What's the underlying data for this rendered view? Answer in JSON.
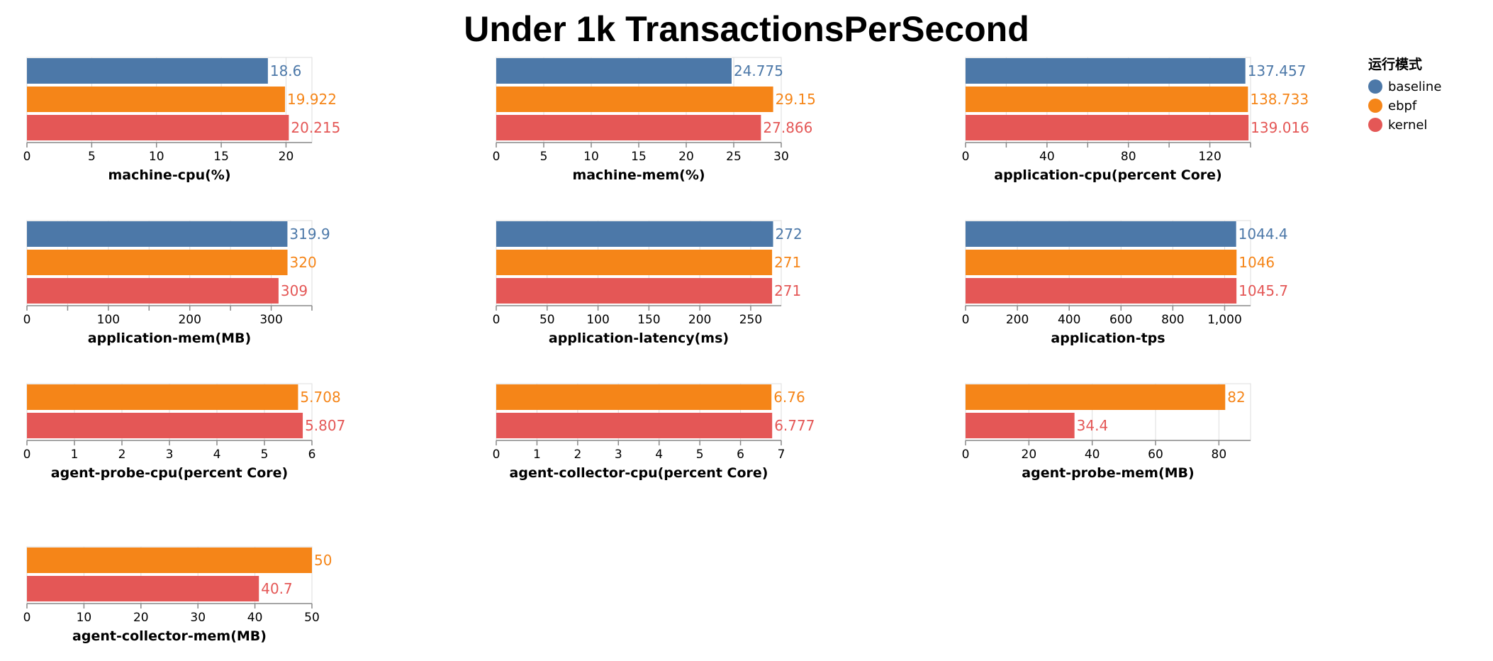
{
  "title": "Under 1k TransactionsPerSecond",
  "colors": {
    "baseline": "#4c78a8",
    "ebpf": "#f58518",
    "kernel": "#e45756",
    "grid": "#dddddd",
    "axis": "#888888"
  },
  "legend": {
    "title": "运行模式",
    "items": [
      {
        "name": "baseline",
        "label": "baseline"
      },
      {
        "name": "ebpf",
        "label": "ebpf"
      },
      {
        "name": "kernel",
        "label": "kernel"
      }
    ]
  },
  "chart_data": [
    {
      "type": "bar",
      "xlabel": "machine-cpu(%)",
      "xlim": [
        0,
        22
      ],
      "ticks": [
        0,
        5,
        10,
        15,
        20
      ],
      "tick_labels": [
        "0",
        "5",
        "10",
        "15",
        "20"
      ],
      "series": [
        {
          "name": "baseline",
          "value": 18.6,
          "label": "18.6"
        },
        {
          "name": "ebpf",
          "value": 19.922,
          "label": "19.922"
        },
        {
          "name": "kernel",
          "value": 20.215,
          "label": "20.215"
        }
      ]
    },
    {
      "type": "bar",
      "xlabel": "machine-mem(%)",
      "xlim": [
        0,
        30
      ],
      "ticks": [
        0,
        5,
        10,
        15,
        20,
        25,
        30
      ],
      "tick_labels": [
        "0",
        "5",
        "10",
        "15",
        "20",
        "25",
        "30"
      ],
      "series": [
        {
          "name": "baseline",
          "value": 24.775,
          "label": "24.775"
        },
        {
          "name": "ebpf",
          "value": 29.15,
          "label": "29.15"
        },
        {
          "name": "kernel",
          "value": 27.866,
          "label": "27.866"
        }
      ]
    },
    {
      "type": "bar",
      "xlabel": "application-cpu(percent Core)",
      "xlim": [
        0,
        140
      ],
      "ticks": [
        0,
        20,
        40,
        60,
        80,
        100,
        120,
        140
      ],
      "tick_labels": [
        "0",
        "",
        "40",
        "",
        "80",
        "",
        "120",
        ""
      ],
      "series": [
        {
          "name": "baseline",
          "value": 137.457,
          "label": "137.457"
        },
        {
          "name": "ebpf",
          "value": 138.733,
          "label": "138.733"
        },
        {
          "name": "kernel",
          "value": 139.016,
          "label": "139.016"
        }
      ]
    },
    {
      "type": "bar",
      "xlabel": "application-mem(MB)",
      "xlim": [
        0,
        350
      ],
      "ticks": [
        0,
        50,
        100,
        150,
        200,
        250,
        300,
        350
      ],
      "tick_labels": [
        "0",
        "",
        "100",
        "",
        "200",
        "",
        "300",
        ""
      ],
      "series": [
        {
          "name": "baseline",
          "value": 319.9,
          "label": "319.9"
        },
        {
          "name": "ebpf",
          "value": 320,
          "label": "320"
        },
        {
          "name": "kernel",
          "value": 309,
          "label": "309"
        }
      ]
    },
    {
      "type": "bar",
      "xlabel": "application-latency(ms)",
      "xlim": [
        0,
        280
      ],
      "ticks": [
        0,
        50,
        100,
        150,
        200,
        250
      ],
      "tick_labels": [
        "0",
        "50",
        "100",
        "150",
        "200",
        "250"
      ],
      "series": [
        {
          "name": "baseline",
          "value": 272,
          "label": "272"
        },
        {
          "name": "ebpf",
          "value": 271,
          "label": "271"
        },
        {
          "name": "kernel",
          "value": 271,
          "label": "271"
        }
      ]
    },
    {
      "type": "bar",
      "xlabel": "application-tps",
      "xlim": [
        0,
        1100
      ],
      "ticks": [
        0,
        200,
        400,
        600,
        800,
        1000
      ],
      "tick_labels": [
        "0",
        "200",
        "400",
        "600",
        "800",
        "1,000"
      ],
      "series": [
        {
          "name": "baseline",
          "value": 1044.4,
          "label": "1044.4"
        },
        {
          "name": "ebpf",
          "value": 1046,
          "label": "1046"
        },
        {
          "name": "kernel",
          "value": 1045.7,
          "label": "1045.7"
        }
      ]
    },
    {
      "type": "bar",
      "xlabel": "agent-probe-cpu(percent Core)",
      "xlim": [
        0,
        6
      ],
      "ticks": [
        0,
        1,
        2,
        3,
        4,
        5,
        6
      ],
      "tick_labels": [
        "0",
        "1",
        "2",
        "3",
        "4",
        "5",
        "6"
      ],
      "series": [
        {
          "name": "ebpf",
          "value": 5.708,
          "label": "5.708"
        },
        {
          "name": "kernel",
          "value": 5.807,
          "label": "5.807"
        }
      ]
    },
    {
      "type": "bar",
      "xlabel": "agent-collector-cpu(percent Core)",
      "xlim": [
        0,
        7
      ],
      "ticks": [
        0,
        1,
        2,
        3,
        4,
        5,
        6,
        7
      ],
      "tick_labels": [
        "0",
        "1",
        "2",
        "3",
        "4",
        "5",
        "6",
        "7"
      ],
      "series": [
        {
          "name": "ebpf",
          "value": 6.76,
          "label": "6.76"
        },
        {
          "name": "kernel",
          "value": 6.777,
          "label": "6.777"
        }
      ]
    },
    {
      "type": "bar",
      "xlabel": "agent-probe-mem(MB)",
      "xlim": [
        0,
        90
      ],
      "ticks": [
        0,
        20,
        40,
        60,
        80
      ],
      "tick_labels": [
        "0",
        "20",
        "40",
        "60",
        "80"
      ],
      "series": [
        {
          "name": "ebpf",
          "value": 82,
          "label": "82"
        },
        {
          "name": "kernel",
          "value": 34.4,
          "label": "34.4"
        }
      ]
    },
    {
      "type": "bar",
      "xlabel": "agent-collector-mem(MB)",
      "xlim": [
        0,
        50
      ],
      "ticks": [
        0,
        10,
        20,
        30,
        40,
        50
      ],
      "tick_labels": [
        "0",
        "10",
        "20",
        "30",
        "40",
        "50"
      ],
      "series": [
        {
          "name": "ebpf",
          "value": 50,
          "label": "50"
        },
        {
          "name": "kernel",
          "value": 40.7,
          "label": "40.7"
        }
      ]
    }
  ]
}
